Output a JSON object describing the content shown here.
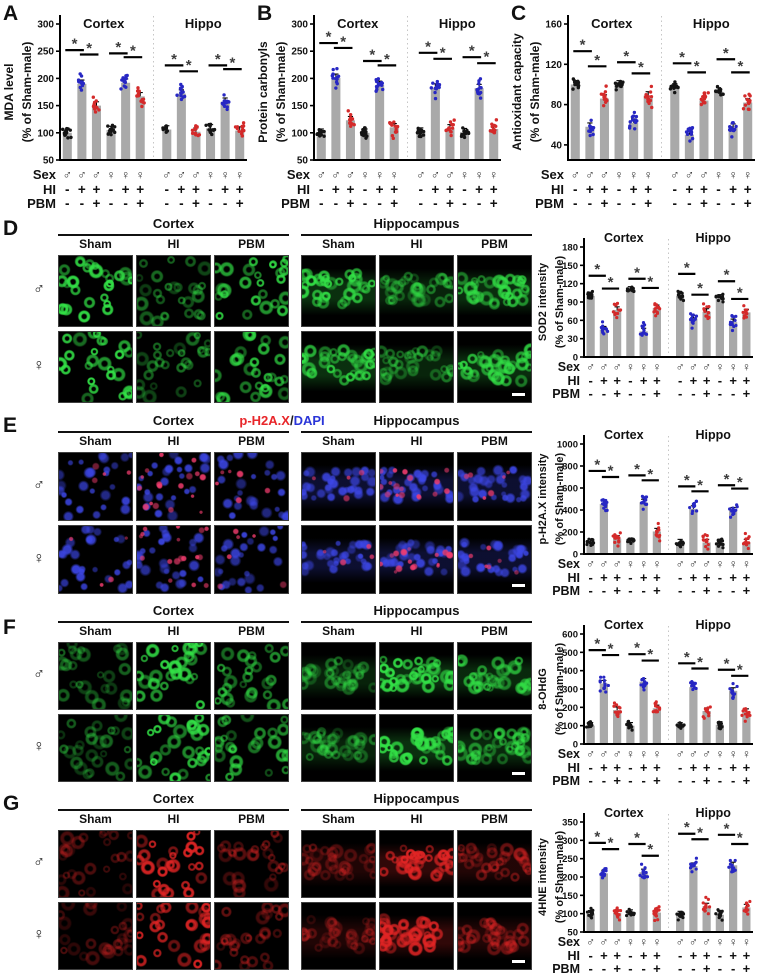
{
  "colors": {
    "background": "#ffffff",
    "bar_fill": "#a9a9a9",
    "dot_black": "#141414",
    "dot_blue": "#2727c3",
    "dot_red": "#d42a2a",
    "sig_mark": "#3c3c3c",
    "axis": "#000000",
    "separator": "#c6c6c6",
    "micro_green": "#32e146",
    "micro_dapi": "#3c46e6",
    "micro_red": "#e12424",
    "micro_pink": "#f23c6e",
    "scale_bar": "#ffffff"
  },
  "x_annotations": {
    "row_labels": [
      "Sex",
      "HI",
      "PBM"
    ],
    "sex": [
      "♂",
      "♂",
      "♂",
      "♀",
      "♀",
      "♀"
    ],
    "hi": [
      "-",
      "+",
      "+",
      "-",
      "+",
      "+"
    ],
    "pbm": [
      "-",
      "-",
      "+",
      "-",
      "-",
      "+"
    ],
    "dot_color_pattern": [
      "black",
      "blue",
      "red",
      "black",
      "blue",
      "red"
    ]
  },
  "chart_data": [
    {
      "panel": "A",
      "type": "bar",
      "title": "",
      "xlabel": "",
      "ylabel_lines": [
        "MDA level",
        "(% of Sham-male)"
      ],
      "ylim": [
        50,
        300
      ],
      "yticks": [
        50,
        100,
        150,
        200,
        250,
        300
      ],
      "groups": [
        {
          "label": "Cortex",
          "values": [
            100,
            190,
            150,
            105,
            192,
            167
          ],
          "sig_brackets": [
            [
              0,
              1,
              252
            ],
            [
              1,
              2,
              244
            ],
            [
              3,
              4,
              246
            ],
            [
              4,
              5,
              239
            ]
          ]
        },
        {
          "label": "Hippo",
          "values": [
            106,
            172,
            102,
            108,
            157,
            104
          ],
          "sig_brackets": [
            [
              0,
              1,
              224
            ],
            [
              1,
              2,
              213
            ],
            [
              3,
              4,
              224
            ],
            [
              4,
              5,
              217
            ]
          ]
        }
      ]
    },
    {
      "panel": "B",
      "type": "bar",
      "title": "",
      "xlabel": "",
      "ylabel_lines": [
        "Protein carbonyls",
        "(% of Sham-male)"
      ],
      "ylim": [
        50,
        300
      ],
      "yticks": [
        50,
        100,
        150,
        200,
        250,
        300
      ],
      "groups": [
        {
          "label": "Cortex",
          "values": [
            100,
            201,
            123,
            100,
            188,
            110
          ],
          "sig_brackets": [
            [
              0,
              1,
              265
            ],
            [
              1,
              2,
              256
            ],
            [
              3,
              4,
              232
            ],
            [
              4,
              5,
              224
            ]
          ]
        },
        {
          "label": "Hippo",
          "values": [
            102,
            183,
            108,
            101,
            182,
            107
          ],
          "sig_brackets": [
            [
              0,
              1,
              247
            ],
            [
              1,
              2,
              236
            ],
            [
              3,
              4,
              239
            ],
            [
              4,
              5,
              228
            ]
          ]
        }
      ]
    },
    {
      "panel": "C",
      "type": "bar",
      "title": "",
      "xlabel": "",
      "ylabel_lines": [
        "Antioxidant capacity",
        "(% of Sham-male)"
      ],
      "ylim": [
        25,
        160
      ],
      "yticks": [
        40,
        80,
        120,
        160
      ],
      "groups": [
        {
          "label": "Cortex",
          "values": [
            100,
            58,
            86,
            100,
            62,
            89
          ],
          "sig_brackets": [
            [
              0,
              1,
              133
            ],
            [
              1,
              2,
              118
            ],
            [
              3,
              4,
              122
            ],
            [
              4,
              5,
              111
            ]
          ]
        },
        {
          "label": "Hippo",
          "values": [
            97,
            50,
            84,
            93,
            57,
            82
          ],
          "sig_brackets": [
            [
              0,
              1,
              121
            ],
            [
              1,
              2,
              112
            ],
            [
              3,
              4,
              125
            ],
            [
              4,
              5,
              112
            ]
          ]
        }
      ]
    },
    {
      "panel": "D",
      "type": "bar",
      "title": "",
      "xlabel": "",
      "ylabel_lines": [
        "SOD2 intensity",
        "(% of Sham-male)"
      ],
      "ylim": [
        0,
        180
      ],
      "yticks": [
        0,
        30,
        60,
        90,
        120,
        150,
        180
      ],
      "groups": [
        {
          "label": "Cortex",
          "values": [
            100,
            45,
            77,
            110,
            42,
            80
          ],
          "sig_brackets": [
            [
              0,
              1,
              133
            ],
            [
              1,
              2,
              112
            ],
            [
              3,
              4,
              128
            ],
            [
              4,
              5,
              113
            ]
          ]
        },
        {
          "label": "Hippo",
          "values": [
            100,
            63,
            74,
            97,
            57,
            73
          ],
          "sig_brackets": [
            [
              0,
              1,
              136
            ],
            [
              1,
              2,
              102
            ],
            [
              3,
              4,
              124
            ],
            [
              4,
              5,
              95
            ]
          ]
        }
      ]
    },
    {
      "panel": "E",
      "type": "bar",
      "title": "",
      "xlabel": "",
      "ylabel_lines": [
        "p-H2A.X intensity",
        "(% of Sham-male)"
      ],
      "ylim": [
        0,
        1000
      ],
      "yticks": [
        0,
        200,
        400,
        600,
        800,
        1000
      ],
      "groups": [
        {
          "label": "Cortex",
          "values": [
            100,
            455,
            140,
            115,
            470,
            205
          ],
          "sig_brackets": [
            [
              0,
              1,
              755
            ],
            [
              1,
              2,
              700
            ],
            [
              3,
              4,
              715
            ],
            [
              4,
              5,
              670
            ]
          ]
        },
        {
          "label": "Hippo",
          "values": [
            105,
            410,
            105,
            95,
            395,
            105
          ],
          "sig_brackets": [
            [
              0,
              1,
              615
            ],
            [
              1,
              2,
              570
            ],
            [
              3,
              4,
              625
            ],
            [
              4,
              5,
              595
            ]
          ]
        }
      ]
    },
    {
      "panel": "F",
      "type": "bar",
      "title": "",
      "xlabel": "",
      "ylabel_lines": [
        "8-OHdG",
        "(% of Sham-male)"
      ],
      "ylim": [
        0,
        600
      ],
      "yticks": [
        0,
        100,
        200,
        300,
        400,
        500,
        600
      ],
      "groups": [
        {
          "label": "Cortex",
          "values": [
            100,
            330,
            185,
            100,
            340,
            195
          ],
          "sig_brackets": [
            [
              0,
              1,
              512
            ],
            [
              1,
              2,
              485
            ],
            [
              3,
              4,
              490
            ],
            [
              4,
              5,
              455
            ]
          ]
        },
        {
          "label": "Hippo",
          "values": [
            100,
            310,
            180,
            105,
            290,
            175
          ],
          "sig_brackets": [
            [
              0,
              1,
              440
            ],
            [
              1,
              2,
              412
            ],
            [
              3,
              4,
              405
            ],
            [
              4,
              5,
              372
            ]
          ]
        }
      ]
    },
    {
      "panel": "G",
      "type": "bar",
      "title": "",
      "xlabel": "",
      "ylabel_lines": [
        "4HNE intensity",
        "(% of Sham-male)"
      ],
      "ylim": [
        50,
        350
      ],
      "yticks": [
        50,
        100,
        150,
        200,
        250,
        300,
        350
      ],
      "groups": [
        {
          "label": "Cortex",
          "values": [
            100,
            210,
            102,
            102,
            213,
            103
          ],
          "sig_brackets": [
            [
              0,
              1,
              293
            ],
            [
              1,
              2,
              276
            ],
            [
              3,
              4,
              290
            ],
            [
              4,
              5,
              258
            ]
          ]
        },
        {
          "label": "Hippo",
          "values": [
            98,
            230,
            120,
            97,
            232,
            117
          ],
          "sig_brackets": [
            [
              0,
              1,
              318
            ],
            [
              1,
              2,
              303
            ],
            [
              3,
              4,
              315
            ],
            [
              4,
              5,
              290
            ]
          ]
        }
      ]
    }
  ],
  "image_panels": [
    {
      "panel": "D",
      "regions": [
        "Cortex",
        "Hippocampus"
      ],
      "columns": [
        "Sham",
        "HI",
        "PBM"
      ],
      "row_labels": [
        "♂",
        "♀"
      ],
      "channel": "green",
      "column_intensity": [
        0.95,
        0.5,
        0.85
      ],
      "scale_bar": true
    },
    {
      "panel": "E",
      "title_parts": [
        {
          "text": "p-H2A.X",
          "color": "#e8262a"
        },
        {
          "text": "/",
          "color": "#1a1a1a"
        },
        {
          "text": "DAPI",
          "color": "#2a35d8"
        }
      ],
      "regions": [
        "Cortex",
        "Hippocampus"
      ],
      "columns": [
        "Sham",
        "HI",
        "PBM"
      ],
      "row_labels": [
        "♂",
        "♀"
      ],
      "channel": "blue-red",
      "column_red_overlay": [
        0.12,
        0.95,
        0.25
      ],
      "scale_bar": true
    },
    {
      "panel": "F",
      "regions": [
        "Cortex",
        "Hippocampus"
      ],
      "columns": [
        "Sham",
        "HI",
        "PBM"
      ],
      "row_labels": [
        "♂",
        "♀"
      ],
      "channel": "green",
      "column_intensity": [
        0.45,
        0.95,
        0.7
      ],
      "scale_bar": true
    },
    {
      "panel": "G",
      "regions": [
        "Cortex",
        "Hippocampus"
      ],
      "columns": [
        "Sham",
        "HI",
        "PBM"
      ],
      "row_labels": [
        "♂",
        "♀"
      ],
      "channel": "red",
      "column_intensity": [
        0.35,
        0.95,
        0.45
      ],
      "scale_bar": true
    }
  ]
}
